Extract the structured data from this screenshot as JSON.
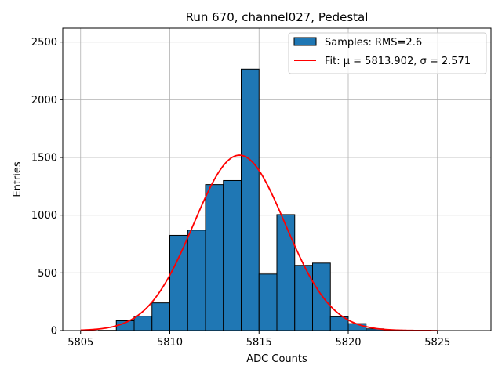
{
  "chart_data": {
    "type": "bar",
    "title": "Run 670, channel027, Pedestal",
    "xlabel": "ADC Counts",
    "ylabel": "Entries",
    "xlim": [
      5804,
      5828
    ],
    "ylim": [
      0,
      2620
    ],
    "xticks": [
      5805,
      5810,
      5815,
      5820,
      5825
    ],
    "yticks": [
      0,
      500,
      1000,
      1500,
      2000,
      2500
    ],
    "grid": true,
    "legend_placement": "upper right",
    "bin_width": 1,
    "bins": [
      {
        "x": 5805,
        "count": 0
      },
      {
        "x": 5806,
        "count": 2
      },
      {
        "x": 5807,
        "count": 85
      },
      {
        "x": 5808,
        "count": 125
      },
      {
        "x": 5809,
        "count": 240
      },
      {
        "x": 5810,
        "count": 825
      },
      {
        "x": 5811,
        "count": 870
      },
      {
        "x": 5812,
        "count": 1265
      },
      {
        "x": 5813,
        "count": 1300
      },
      {
        "x": 5814,
        "count": 2265
      },
      {
        "x": 5815,
        "count": 490
      },
      {
        "x": 5816,
        "count": 1005
      },
      {
        "x": 5817,
        "count": 565
      },
      {
        "x": 5818,
        "count": 585
      },
      {
        "x": 5819,
        "count": 120
      },
      {
        "x": 5820,
        "count": 60
      },
      {
        "x": 5821,
        "count": 15
      },
      {
        "x": 5822,
        "count": 3
      },
      {
        "x": 5823,
        "count": 0
      },
      {
        "x": 5824,
        "count": 0
      },
      {
        "x": 5825,
        "count": 0
      },
      {
        "x": 5826,
        "count": 0
      }
    ],
    "fit": {
      "mu": 5813.902,
      "sigma": 2.571,
      "amplitude": 1520,
      "x_range": [
        5805,
        5825
      ]
    },
    "series": [
      {
        "name": "Samples: RMS=2.6",
        "type": "histogram",
        "color": "#1f77b4",
        "edgecolor": "#000000"
      },
      {
        "name": "Fit: μ = 5813.902, σ = 2.571",
        "type": "line",
        "color": "#ff0000"
      }
    ]
  }
}
